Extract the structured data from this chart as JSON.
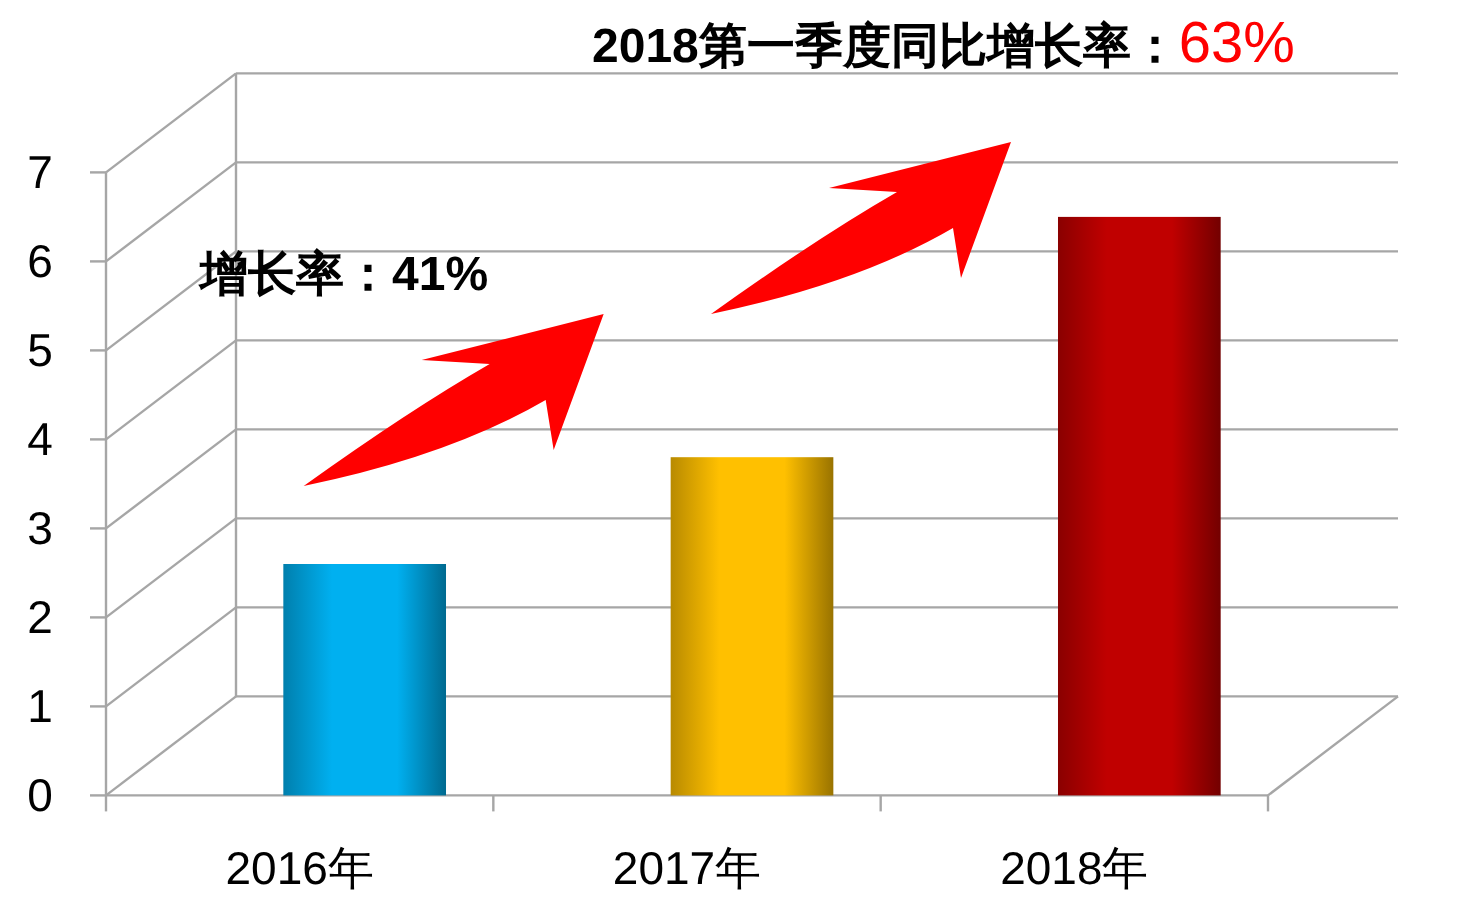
{
  "chart_data": {
    "type": "bar",
    "title": "2018第一季度同比增长率：63%",
    "annotations": [
      "增长率：41%"
    ],
    "categories": [
      "2016年",
      "2017年",
      "2018年"
    ],
    "values": [
      2.6,
      3.8,
      6.5
    ],
    "colors": [
      "#00b0f0",
      "#ffc000",
      "#c00000"
    ],
    "ylim": [
      0,
      7
    ],
    "yticks": [
      0,
      1,
      2,
      3,
      4,
      5,
      6,
      7
    ],
    "grid": "y"
  }
}
